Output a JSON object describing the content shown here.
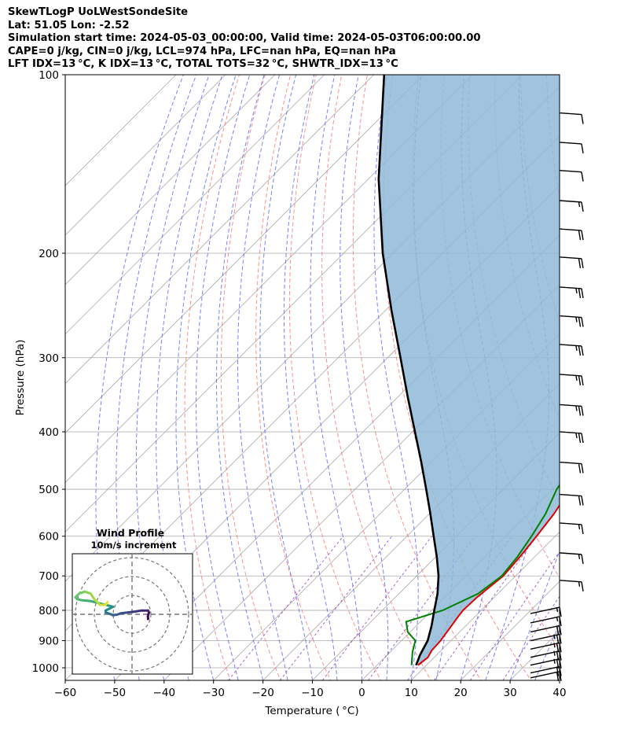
{
  "header": {
    "line1": "SkewTLogP UoLWestSondeSite",
    "line2": "Lat: 51.05   Lon: -2.52",
    "line3": "Simulation start time: 2024-05-03_00:00:00, Valid time: 2024-05-03T06:00:00.00",
    "line4": "CAPE=0 j/kg, CIN=0 j/kg, LCL=974 hPa, LFC=nan hPa, EQ=nan hPa",
    "line5": "LFT IDX=13 °C, K IDX=13 °C, TOTAL TOTS=32 °C, SHWTR_IDX=13 °C"
  },
  "chart_data": {
    "type": "line",
    "xlabel": "Temperature ( °C)",
    "ylabel": "Pressure (hPa)",
    "xlim": [
      -60,
      40
    ],
    "ylim": [
      1050,
      100
    ],
    "y_scale": "log",
    "skew": "45-degree skew-T",
    "x_ticks": [
      "−60",
      "−50",
      "−40",
      "−30",
      "−20",
      "−10",
      "0",
      "10",
      "20",
      "30",
      "40"
    ],
    "x_tick_values": [
      -60,
      -50,
      -40,
      -30,
      -20,
      -10,
      0,
      10,
      20,
      30,
      40
    ],
    "y_ticks": [
      "100",
      "200",
      "300",
      "400",
      "500",
      "600",
      "700",
      "800",
      "900",
      "1000"
    ],
    "y_tick_values": [
      100,
      200,
      300,
      400,
      500,
      600,
      700,
      800,
      900,
      1000
    ],
    "grid": true,
    "colors": {
      "temperature": "#e00000",
      "dewpoint": "#008000",
      "parcel": "#000000",
      "cin_shade": "#8fb8d8",
      "dry_adiabats": "#ff5555",
      "moist_adiabats": "#4a5aff",
      "mixing_ratio": "#9040c0",
      "isotherms": "#aaaaaa"
    },
    "series": [
      {
        "role": "temperature",
        "p": [
          990,
          960,
          935,
          900,
          850,
          820,
          800,
          760,
          700,
          650,
          600,
          550,
          500,
          450,
          400,
          360,
          330,
          310,
          290,
          275,
          262,
          245,
          230,
          215,
          205,
          190,
          175,
          160,
          145,
          130,
          115,
          100
        ],
        "t": [
          8.3,
          8.7,
          8.1,
          7.9,
          7.1,
          6.6,
          6.3,
          6.5,
          7.5,
          7.0,
          6.2,
          5.2,
          3.5,
          0.8,
          -2.6,
          -6.0,
          -9.0,
          -10.5,
          -11.0,
          -11.2,
          -11.5,
          -12.0,
          -11.8,
          -11.2,
          -9.6,
          -7.3,
          -5.6,
          -3.6,
          -2.0,
          0.9,
          3.8,
          7.7
        ]
      },
      {
        "role": "dewpoint",
        "p": [
          990,
          940,
          900,
          870,
          836,
          800,
          750,
          700,
          650,
          600,
          550,
          500,
          450,
          400,
          360,
          340,
          310,
          290,
          275,
          260,
          245,
          232,
          215,
          205,
          195,
          180,
          160,
          145,
          130,
          115,
          100
        ],
        "t": [
          7.0,
          4.5,
          2.8,
          -0.5,
          -2.9,
          2.2,
          6.0,
          7.2,
          6.5,
          5.2,
          3.5,
          0.8,
          -0.8,
          -2.7,
          -7.9,
          -9.4,
          -11.7,
          -14.2,
          -17.3,
          -19.5,
          -19.5,
          -20.1,
          -22.4,
          -24.0,
          -28.1,
          -35.0,
          -36.7,
          -36.8,
          -36.6,
          -36.6,
          -34.7
        ]
      },
      {
        "role": "parcel",
        "p": [
          990,
          950,
          900,
          850,
          800,
          750,
          700,
          650,
          600,
          550,
          500,
          450,
          400,
          350,
          300,
          250,
          200,
          150,
          100
        ],
        "t": [
          7.9,
          6.6,
          5.3,
          3.1,
          0.5,
          -2.2,
          -5.6,
          -9.8,
          -14.6,
          -19.8,
          -25.6,
          -32.1,
          -39.5,
          -47.9,
          -57.4,
          -68.7,
          -82.1,
          -97.9,
          -117.9
        ]
      }
    ],
    "wind_barbs": [
      {
        "p": 1040,
        "speed_kt": 20
      },
      {
        "p": 1020,
        "speed_kt": 20
      },
      {
        "p": 990,
        "speed_kt": 25
      },
      {
        "p": 960,
        "speed_kt": 25
      },
      {
        "p": 930,
        "speed_kt": 25
      },
      {
        "p": 900,
        "speed_kt": 25
      },
      {
        "p": 870,
        "speed_kt": 20
      },
      {
        "p": 840,
        "speed_kt": 15
      },
      {
        "p": 810,
        "speed_kt": 15
      },
      {
        "p": 712,
        "speed_kt": 15
      },
      {
        "p": 640,
        "speed_kt": 15
      },
      {
        "p": 570,
        "speed_kt": 15
      },
      {
        "p": 510,
        "speed_kt": 20
      },
      {
        "p": 450,
        "speed_kt": 20
      },
      {
        "p": 400,
        "speed_kt": 25
      },
      {
        "p": 360,
        "speed_kt": 25
      },
      {
        "p": 320,
        "speed_kt": 25
      },
      {
        "p": 285,
        "speed_kt": 25
      },
      {
        "p": 255,
        "speed_kt": 25
      },
      {
        "p": 228,
        "speed_kt": 25
      },
      {
        "p": 203,
        "speed_kt": 20
      },
      {
        "p": 182,
        "speed_kt": 20
      },
      {
        "p": 163,
        "speed_kt": 15
      },
      {
        "p": 145,
        "speed_kt": 10
      },
      {
        "p": 130,
        "speed_kt": 10
      },
      {
        "p": 116,
        "speed_kt": 10
      }
    ]
  },
  "hodograph": {
    "title": "Wind Profile",
    "subtitle": "10m/s increment",
    "rings_ms": [
      10,
      20,
      30
    ],
    "u": [
      8.5,
      8.4,
      9.0,
      8.5,
      5.0,
      2.0,
      -2.0,
      -6.0,
      -8.0,
      -10.0,
      -12.0,
      -14.0,
      -14.0,
      -12.0,
      -10.0,
      -14.0,
      -18.0,
      -22.0,
      -27.0,
      -29.0,
      -30.0,
      -28.0,
      -25.0,
      -22.0,
      -20.0,
      -17.0,
      -14.0,
      -13.0
    ],
    "v": [
      -2.5,
      -1.0,
      1.0,
      2.0,
      2.0,
      1.5,
      1.0,
      0.5,
      -0.2,
      -0.5,
      0.3,
      1.0,
      2.0,
      3.0,
      4.0,
      5.0,
      6.0,
      7.0,
      7.5,
      8.0,
      9.0,
      11.0,
      12.0,
      11.0,
      8.0,
      5.0,
      5.0,
      6.5
    ]
  }
}
